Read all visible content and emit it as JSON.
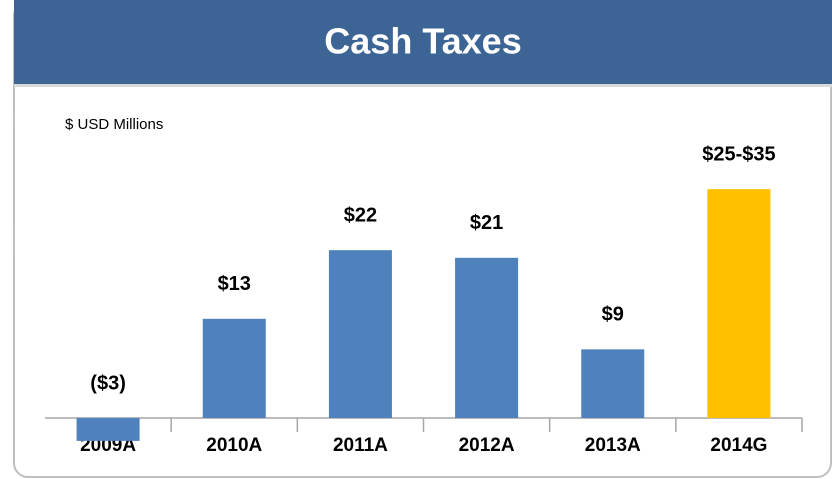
{
  "chart_data": {
    "type": "bar",
    "title": "Cash Taxes",
    "subtitle": "$ USD Millions",
    "categories": [
      "2009A",
      "2010A",
      "2011A",
      "2012A",
      "2013A",
      "2014G"
    ],
    "values": [
      -3,
      13,
      22,
      21,
      9,
      30
    ],
    "value_labels": [
      "($3)",
      "$13",
      "$22",
      "$21",
      "$9",
      "$25-$35"
    ],
    "colors": [
      "#4f81bd",
      "#4f81bd",
      "#4f81bd",
      "#4f81bd",
      "#4f81bd",
      "#ffc000"
    ],
    "ylim": [
      0,
      35
    ]
  }
}
